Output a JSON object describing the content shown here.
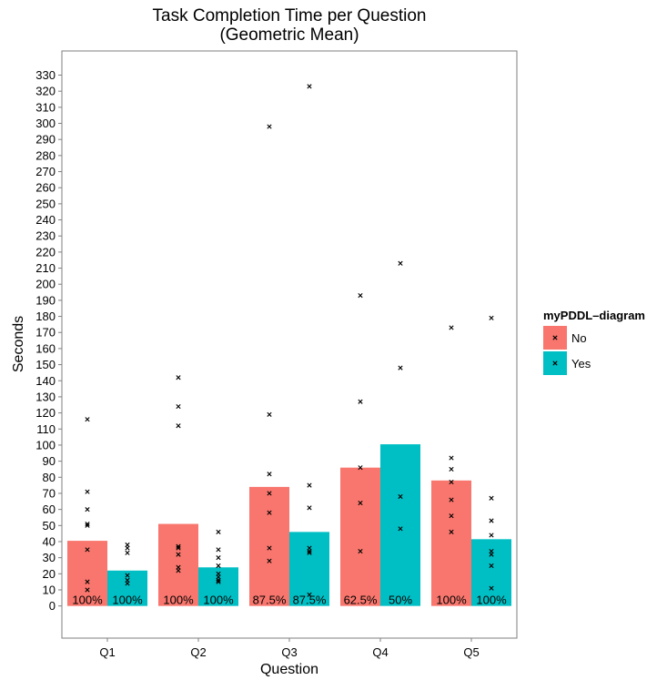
{
  "chart_data": {
    "type": "bar",
    "title_line1": "Task Completion Time per Question",
    "title_line2": "(Geometric Mean)",
    "xlabel": "Question",
    "ylabel": "Seconds",
    "ylim": [
      -20,
      345
    ],
    "yticks": [
      0,
      10,
      20,
      30,
      40,
      50,
      60,
      70,
      80,
      90,
      100,
      110,
      120,
      130,
      140,
      150,
      160,
      170,
      180,
      190,
      200,
      210,
      220,
      230,
      240,
      250,
      260,
      270,
      280,
      290,
      300,
      310,
      320,
      330
    ],
    "grid": false,
    "categories": [
      "Q1",
      "Q2",
      "Q3",
      "Q4",
      "Q5"
    ],
    "legend": {
      "title": "myPDDL–diagram",
      "placement": "right"
    },
    "series": [
      {
        "name": "No",
        "color": "#F8766D",
        "values": [
          40.5,
          51,
          74,
          86,
          78
        ],
        "labels": [
          "100%",
          "100%",
          "87.5%",
          "62.5%",
          "100%"
        ],
        "points": [
          [
            116,
            71,
            60,
            51,
            50,
            35,
            15,
            10
          ],
          [
            142,
            124,
            112,
            37,
            36,
            32,
            24,
            22
          ],
          [
            298,
            119,
            82,
            70,
            58,
            36,
            28
          ],
          [
            193,
            127,
            86,
            64,
            34
          ],
          [
            173,
            92,
            85,
            77,
            66,
            56,
            46
          ]
        ]
      },
      {
        "name": "Yes",
        "color": "#00BFC4",
        "values": [
          22,
          24,
          46,
          100.5,
          41.5
        ],
        "labels": [
          "100%",
          "100%",
          "87.5%",
          "50%",
          "100%"
        ],
        "points": [
          [
            38,
            36,
            33,
            19,
            16,
            14
          ],
          [
            46,
            35,
            30,
            25,
            20,
            18,
            16,
            15
          ],
          [
            323,
            75,
            61,
            36,
            34,
            33,
            7
          ],
          [
            213,
            148,
            68,
            48
          ],
          [
            179,
            67,
            53,
            44,
            34,
            32,
            25,
            11
          ]
        ]
      }
    ]
  }
}
